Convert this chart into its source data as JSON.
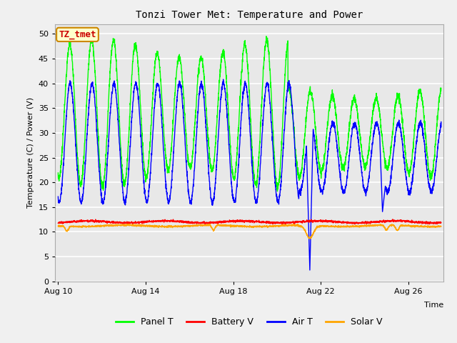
{
  "title": "Tonzi Tower Met: Temperature and Power",
  "xlabel": "Time",
  "ylabel": "Temperature (C) / Power (V)",
  "ylim": [
    0,
    52
  ],
  "yticks": [
    0,
    5,
    10,
    15,
    20,
    25,
    30,
    35,
    40,
    45,
    50
  ],
  "xlim_days": [
    9.85,
    27.6
  ],
  "xtick_labels": [
    "Aug 10",
    "Aug 14",
    "Aug 18",
    "Aug 22",
    "Aug 26"
  ],
  "xtick_positions": [
    10,
    14,
    18,
    22,
    26
  ],
  "fig_bg_color": "#f0f0f0",
  "plot_bg_color": "#e8e8e8",
  "grid_color": "#ffffff",
  "panel_T_color": "#00ff00",
  "battery_V_color": "#ff0000",
  "air_T_color": "#0000ff",
  "solar_V_color": "#ffa500",
  "legend_labels": [
    "Panel T",
    "Battery V",
    "Air T",
    "Solar V"
  ],
  "annotation_text": "TZ_tmet",
  "annotation_bg": "#ffffcc",
  "annotation_border": "#cc8800"
}
